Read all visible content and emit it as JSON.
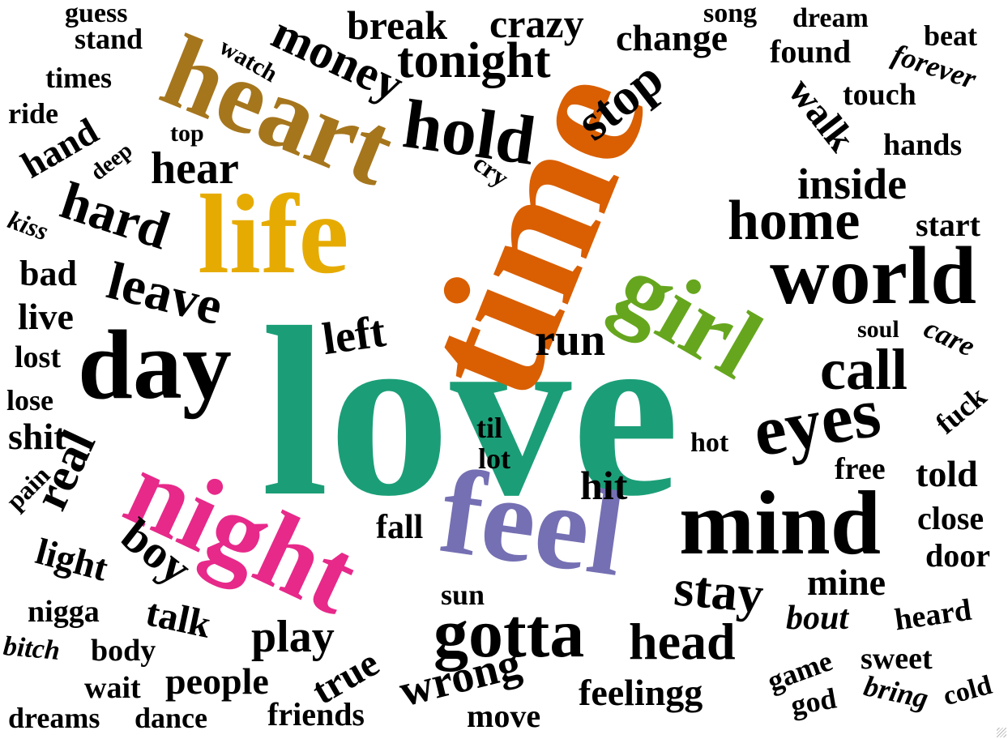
{
  "words": [
    {
      "text": "love",
      "color": "#1b9e77"
    },
    {
      "text": "time",
      "color": "#d95f02"
    },
    {
      "text": "heart",
      "color": "#a6761d"
    },
    {
      "text": "life",
      "color": "#e6ab02"
    },
    {
      "text": "night",
      "color": "#e7298a"
    },
    {
      "text": "feel",
      "color": "#7570b3"
    },
    {
      "text": "girl",
      "color": "#66a61e"
    },
    {
      "text": "day",
      "color": "#000000"
    },
    {
      "text": "world",
      "color": "#000000"
    },
    {
      "text": "mind",
      "color": "#000000"
    },
    {
      "text": "home",
      "color": "#000000"
    },
    {
      "text": "eyes",
      "color": "#000000"
    },
    {
      "text": "gotta",
      "color": "#000000"
    },
    {
      "text": "hold",
      "color": "#000000"
    },
    {
      "text": "tonight",
      "color": "#000000"
    },
    {
      "text": "money",
      "color": "#000000"
    },
    {
      "text": "leave",
      "color": "#000000"
    },
    {
      "text": "hard",
      "color": "#000000"
    },
    {
      "text": "stop",
      "color": "#000000"
    },
    {
      "text": "call",
      "color": "#000000"
    },
    {
      "text": "stay",
      "color": "#000000"
    },
    {
      "text": "head",
      "color": "#000000"
    },
    {
      "text": "play",
      "color": "#000000"
    },
    {
      "text": "real",
      "color": "#000000"
    },
    {
      "text": "boy",
      "color": "#000000"
    },
    {
      "text": "hear",
      "color": "#000000"
    },
    {
      "text": "left",
      "color": "#000000"
    },
    {
      "text": "run",
      "color": "#000000"
    },
    {
      "text": "wrong",
      "color": "#000000"
    },
    {
      "text": "inside",
      "color": "#000000"
    },
    {
      "text": "break",
      "color": "#000000"
    },
    {
      "text": "crazy",
      "color": "#000000"
    },
    {
      "text": "change",
      "color": "#000000"
    },
    {
      "text": "walk",
      "color": "#000000"
    },
    {
      "text": "hit",
      "color": "#000000"
    },
    {
      "text": "feelingg",
      "color": "#000000"
    },
    {
      "text": "mine",
      "color": "#000000"
    },
    {
      "text": "bout",
      "color": "#000000"
    },
    {
      "text": "people",
      "color": "#000000"
    },
    {
      "text": "true",
      "color": "#000000"
    },
    {
      "text": "talk",
      "color": "#000000"
    },
    {
      "text": "light",
      "color": "#000000"
    },
    {
      "text": "told",
      "color": "#000000"
    },
    {
      "text": "hand",
      "color": "#000000"
    },
    {
      "text": "live",
      "color": "#000000"
    },
    {
      "text": "bad",
      "color": "#000000"
    },
    {
      "text": "shit",
      "color": "#000000"
    },
    {
      "text": "fall",
      "color": "#000000"
    },
    {
      "text": "friends",
      "color": "#000000"
    },
    {
      "text": "move",
      "color": "#000000"
    },
    {
      "text": "found",
      "color": "#000000"
    },
    {
      "text": "close",
      "color": "#000000"
    },
    {
      "text": "door",
      "color": "#000000"
    },
    {
      "text": "heard",
      "color": "#000000"
    },
    {
      "text": "start",
      "color": "#000000"
    },
    {
      "text": "touch",
      "color": "#000000"
    },
    {
      "text": "hands",
      "color": "#000000"
    },
    {
      "text": "forever",
      "color": "#000000"
    },
    {
      "text": "beat",
      "color": "#000000"
    },
    {
      "text": "dream",
      "color": "#000000"
    },
    {
      "text": "song",
      "color": "#000000"
    },
    {
      "text": "guess",
      "color": "#000000"
    },
    {
      "text": "stand",
      "color": "#000000"
    },
    {
      "text": "times",
      "color": "#000000"
    },
    {
      "text": "ride",
      "color": "#000000"
    },
    {
      "text": "watch",
      "color": "#000000"
    },
    {
      "text": "top",
      "color": "#000000"
    },
    {
      "text": "deep",
      "color": "#000000"
    },
    {
      "text": "kiss",
      "color": "#000000"
    },
    {
      "text": "lost",
      "color": "#000000"
    },
    {
      "text": "lose",
      "color": "#000000"
    },
    {
      "text": "pain",
      "color": "#000000"
    },
    {
      "text": "nigga",
      "color": "#000000"
    },
    {
      "text": "bitch",
      "color": "#000000"
    },
    {
      "text": "body",
      "color": "#000000"
    },
    {
      "text": "wait",
      "color": "#000000"
    },
    {
      "text": "dreams",
      "color": "#000000"
    },
    {
      "text": "dance",
      "color": "#000000"
    },
    {
      "text": "sun",
      "color": "#000000"
    },
    {
      "text": "til",
      "color": "#000000"
    },
    {
      "text": "lot",
      "color": "#000000"
    },
    {
      "text": "hot",
      "color": "#000000"
    },
    {
      "text": "cry",
      "color": "#000000"
    },
    {
      "text": "soul",
      "color": "#000000"
    },
    {
      "text": "care",
      "color": "#000000"
    },
    {
      "text": "fuck",
      "color": "#000000"
    },
    {
      "text": "free",
      "color": "#000000"
    },
    {
      "text": "game",
      "color": "#000000"
    },
    {
      "text": "sweet",
      "color": "#000000"
    },
    {
      "text": "god",
      "color": "#000000"
    },
    {
      "text": "bring",
      "color": "#000000"
    },
    {
      "text": "cold",
      "color": "#000000"
    }
  ]
}
